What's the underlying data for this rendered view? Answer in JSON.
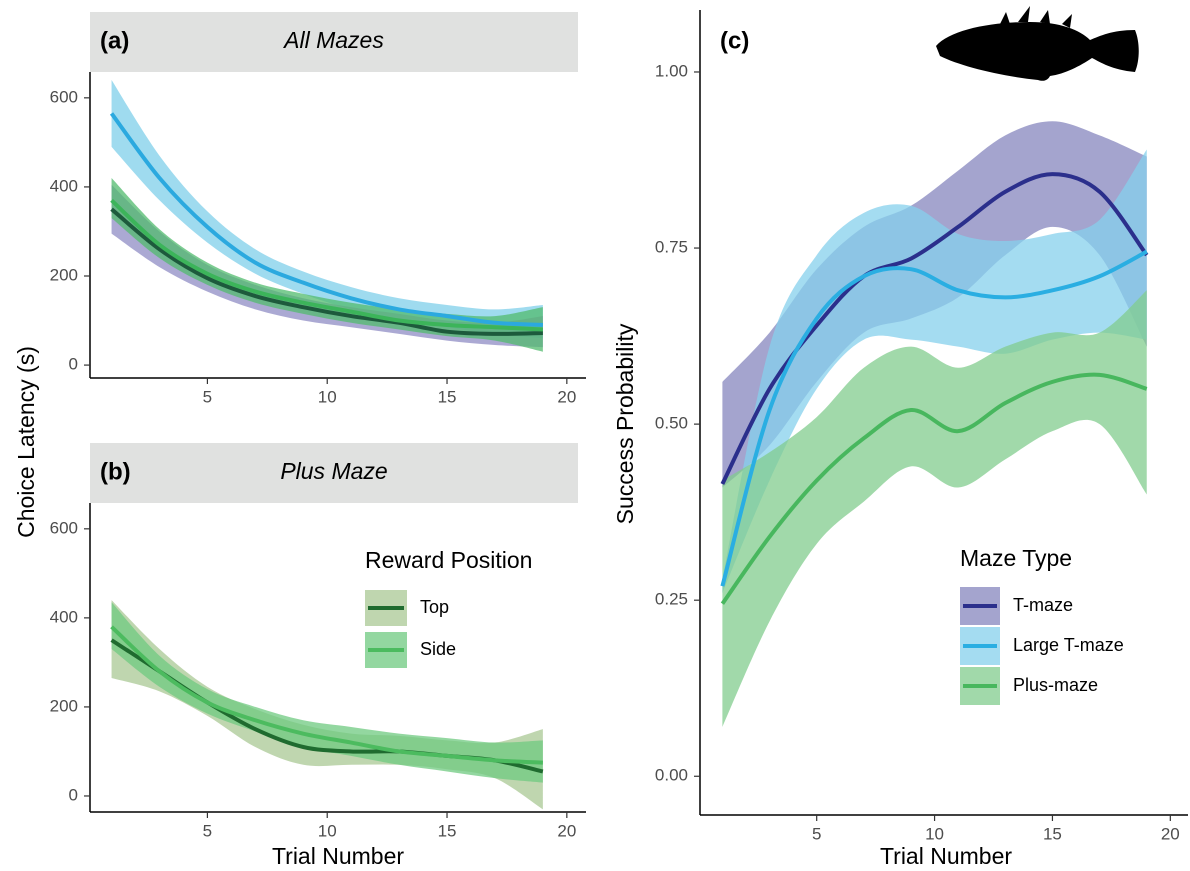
{
  "chart_data": [
    {
      "type": "line",
      "label": "(a)",
      "title": "All Mazes",
      "y_label": "Choice Latency (s)",
      "x": [
        1,
        3,
        5,
        7,
        9,
        11,
        13,
        15,
        17,
        19
      ],
      "xlim": [
        0.1,
        20.8
      ],
      "xticks": [
        5,
        10,
        15,
        20
      ],
      "ylim": [
        -29,
        658
      ],
      "yticks": [
        0,
        200,
        400,
        600
      ],
      "series": [
        {
          "color": "#2ba9df",
          "band_color": "#7fcfea",
          "values": [
            565,
            420,
            310,
            230,
            185,
            150,
            125,
            110,
            95,
            90
          ],
          "lower": [
            490,
            370,
            275,
            205,
            160,
            125,
            100,
            85,
            70,
            60
          ],
          "upper": [
            640,
            470,
            345,
            260,
            210,
            175,
            150,
            135,
            125,
            135
          ]
        },
        {
          "color": "#1d5a3c",
          "band_color": "#8f8cc4",
          "values": [
            350,
            260,
            195,
            155,
            130,
            110,
            95,
            75,
            70,
            72
          ],
          "lower": [
            295,
            220,
            165,
            125,
            100,
            85,
            70,
            55,
            45,
            40
          ],
          "upper": [
            405,
            300,
            225,
            180,
            150,
            130,
            115,
            100,
            95,
            110
          ]
        },
        {
          "color": "#3cb45a",
          "band_color": "#52bb6e",
          "values": [
            370,
            270,
            205,
            165,
            140,
            120,
            100,
            90,
            85,
            80
          ],
          "lower": [
            330,
            240,
            180,
            140,
            115,
            95,
            80,
            65,
            55,
            30
          ],
          "upper": [
            420,
            305,
            230,
            185,
            160,
            140,
            125,
            115,
            110,
            130
          ]
        }
      ]
    },
    {
      "type": "line",
      "label": "(b)",
      "title": "Plus Maze",
      "x_label": "Trial Number",
      "legend_title": "Reward Position",
      "x": [
        1,
        3,
        5,
        7,
        9,
        11,
        13,
        15,
        17,
        19
      ],
      "xlim": [
        0.1,
        20.8
      ],
      "xticks": [
        5,
        10,
        15,
        20
      ],
      "ylim": [
        -36,
        658
      ],
      "yticks": [
        0,
        200,
        400,
        600
      ],
      "series": [
        {
          "name": "Top",
          "color": "#1f6b2f",
          "band_color": "#a9c894",
          "values": [
            350,
            280,
            210,
            150,
            110,
            100,
            100,
            90,
            80,
            55
          ],
          "lower": [
            265,
            235,
            180,
            110,
            70,
            70,
            70,
            60,
            40,
            -30
          ],
          "upper": [
            440,
            330,
            245,
            195,
            160,
            140,
            135,
            125,
            120,
            150
          ]
        },
        {
          "name": "Side",
          "color": "#4cbb5f",
          "band_color": "#6fca80",
          "values": [
            380,
            280,
            210,
            170,
            140,
            120,
            100,
            90,
            80,
            75
          ],
          "lower": [
            330,
            245,
            185,
            145,
            110,
            90,
            70,
            55,
            40,
            30
          ],
          "upper": [
            435,
            315,
            240,
            200,
            170,
            155,
            140,
            130,
            120,
            125
          ]
        }
      ]
    },
    {
      "type": "line",
      "label": "(c)",
      "x_label": "Trial Number",
      "y_label": "Success Probability",
      "legend_title": "Maze Type",
      "x": [
        1,
        3,
        5,
        7,
        9,
        11,
        13,
        15,
        17,
        19
      ],
      "xlim": [
        0.05,
        20.75
      ],
      "xticks": [
        5,
        10,
        15,
        20
      ],
      "ylim": [
        -0.055,
        1.088
      ],
      "yticks": [
        {
          "value": 0,
          "label": "0.00"
        },
        {
          "value": 0.25,
          "label": "0.25"
        },
        {
          "value": 0.5,
          "label": "0.50"
        },
        {
          "value": 0.75,
          "label": "0.75"
        },
        {
          "value": 1,
          "label": "1.00"
        }
      ],
      "series": [
        {
          "name": "T-maze",
          "color": "#2b2f8c",
          "band_color": "#8585bd",
          "values": [
            0.415,
            0.55,
            0.64,
            0.71,
            0.735,
            0.78,
            0.83,
            0.855,
            0.83,
            0.74
          ],
          "lower": [
            0.41,
            0.47,
            0.56,
            0.63,
            0.65,
            0.68,
            0.74,
            0.78,
            0.74,
            0.61
          ],
          "upper": [
            0.56,
            0.63,
            0.72,
            0.78,
            0.81,
            0.86,
            0.91,
            0.93,
            0.91,
            0.88
          ]
        },
        {
          "name": "Large T-maze",
          "color": "#2aaee2",
          "band_color": "#86d0ec",
          "values": [
            0.27,
            0.52,
            0.65,
            0.71,
            0.72,
            0.69,
            0.68,
            0.69,
            0.71,
            0.745
          ],
          "lower": [
            0.26,
            0.42,
            0.55,
            0.62,
            0.62,
            0.61,
            0.6,
            0.62,
            0.63,
            0.62
          ],
          "upper": [
            0.28,
            0.61,
            0.74,
            0.8,
            0.81,
            0.77,
            0.76,
            0.77,
            0.79,
            0.89
          ]
        },
        {
          "name": "Plus-maze",
          "color": "#48b75e",
          "band_color": "#82cc8e",
          "values": [
            0.245,
            0.34,
            0.42,
            0.48,
            0.52,
            0.49,
            0.53,
            0.56,
            0.57,
            0.55
          ],
          "lower": [
            0.07,
            0.22,
            0.33,
            0.39,
            0.44,
            0.41,
            0.45,
            0.49,
            0.5,
            0.4
          ],
          "upper": [
            0.42,
            0.46,
            0.51,
            0.58,
            0.61,
            0.58,
            0.61,
            0.63,
            0.63,
            0.69
          ]
        }
      ]
    }
  ]
}
